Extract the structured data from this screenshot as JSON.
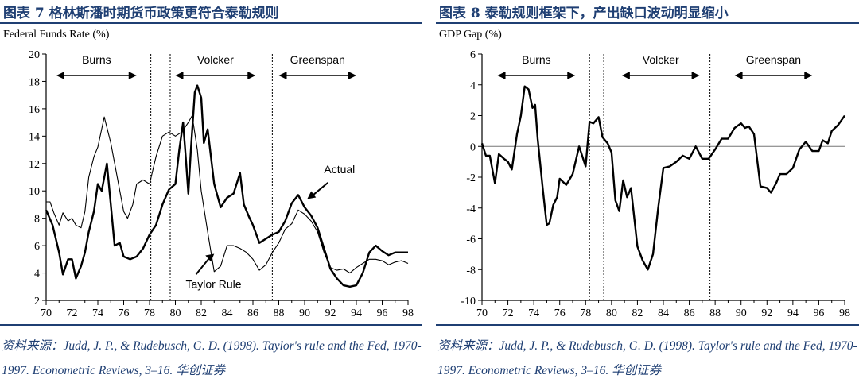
{
  "figures": [
    {
      "title": "图表 7 格林斯潘时期货币政策更符合泰勒规则",
      "ylabel": "Federal Funds Rate (%)",
      "source": "资料来源：Judd, J. P., & Rudebusch, G. D. (1998). Taylor's rule and the Fed, 1970-1997. Econometric Reviews, 3–16. 华创证券"
    },
    {
      "title": "图表 8 泰勒规则框架下，产出缺口波动明显缩小",
      "ylabel": "GDP Gap (%)",
      "source": "资料来源：Judd, J. P., & Rudebusch, G. D. (1998). Taylor's rule and the Fed, 1970-1997. Econometric Reviews, 3–16. 华创证券"
    }
  ],
  "chart_data": [
    {
      "type": "line",
      "title": "图表 7 格林斯潘时期货币政策更符合泰勒规则",
      "ylabel": "Federal Funds Rate (%)",
      "xlabel": "",
      "xlim": [
        70,
        98
      ],
      "ylim": [
        2,
        20
      ],
      "xticks": [
        "70",
        "72",
        "74",
        "76",
        "78",
        "80",
        "82",
        "84",
        "86",
        "88",
        "90",
        "92",
        "94",
        "96",
        "98"
      ],
      "yticks": [
        "2",
        "4",
        "6",
        "8",
        "10",
        "12",
        "14",
        "16",
        "18",
        "20"
      ],
      "grid": false,
      "eras": [
        {
          "label": "Burns",
          "start": 70.8,
          "end": 77.0,
          "divider": 78.1
        },
        {
          "label": "Volcker",
          "start": 80.0,
          "end": 86.2,
          "divider": 79.6
        },
        {
          "label": "Greenspan",
          "start": 88.0,
          "end": 94.0,
          "divider": 87.5
        }
      ],
      "annotations": [
        {
          "text": "Actual",
          "series": "Actual"
        },
        {
          "text": "Taylor Rule",
          "series": "Taylor Rule"
        }
      ],
      "series": [
        {
          "name": "Actual",
          "style": "thick",
          "points": [
            [
              70,
              8.6
            ],
            [
              70.5,
              7.5
            ],
            [
              71,
              5.5
            ],
            [
              71.3,
              3.9
            ],
            [
              71.7,
              5.0
            ],
            [
              72,
              5.0
            ],
            [
              72.3,
              3.6
            ],
            [
              72.7,
              4.5
            ],
            [
              73,
              5.5
            ],
            [
              73.3,
              7.0
            ],
            [
              73.7,
              8.5
            ],
            [
              74,
              10.5
            ],
            [
              74.3,
              10.0
            ],
            [
              74.7,
              12.0
            ],
            [
              75,
              9.0
            ],
            [
              75.3,
              6.0
            ],
            [
              75.7,
              6.2
            ],
            [
              76,
              5.2
            ],
            [
              76.5,
              5.0
            ],
            [
              77,
              5.2
            ],
            [
              77.5,
              5.8
            ],
            [
              78,
              6.8
            ],
            [
              78.5,
              7.5
            ],
            [
              79,
              9.0
            ],
            [
              79.5,
              10.1
            ],
            [
              80,
              10.5
            ],
            [
              80.3,
              13.0
            ],
            [
              80.6,
              15.0
            ],
            [
              80.8,
              12.5
            ],
            [
              81,
              9.8
            ],
            [
              81.2,
              13.0
            ],
            [
              81.5,
              17.2
            ],
            [
              81.7,
              17.7
            ],
            [
              82,
              16.8
            ],
            [
              82.2,
              13.5
            ],
            [
              82.5,
              14.5
            ],
            [
              83,
              10.5
            ],
            [
              83.5,
              8.8
            ],
            [
              84,
              9.5
            ],
            [
              84.5,
              9.8
            ],
            [
              85,
              11.3
            ],
            [
              85.3,
              9.0
            ],
            [
              85.7,
              8.1
            ],
            [
              86,
              7.5
            ],
            [
              86.5,
              6.2
            ],
            [
              87,
              6.5
            ],
            [
              87.5,
              6.8
            ],
            [
              88,
              7.0
            ],
            [
              88.5,
              7.8
            ],
            [
              89,
              9.1
            ],
            [
              89.5,
              9.7
            ],
            [
              90,
              8.8
            ],
            [
              90.5,
              8.2
            ],
            [
              91,
              7.3
            ],
            [
              91.5,
              5.8
            ],
            [
              92,
              4.3
            ],
            [
              92.5,
              3.6
            ],
            [
              93,
              3.1
            ],
            [
              93.5,
              3.0
            ],
            [
              94,
              3.1
            ],
            [
              94.5,
              4.0
            ],
            [
              95,
              5.5
            ],
            [
              95.5,
              6.0
            ],
            [
              96,
              5.6
            ],
            [
              96.5,
              5.3
            ],
            [
              97,
              5.5
            ],
            [
              97.5,
              5.5
            ],
            [
              98,
              5.5
            ]
          ]
        },
        {
          "name": "Taylor Rule",
          "style": "thin",
          "points": [
            [
              70,
              9.2
            ],
            [
              70.3,
              9.2
            ],
            [
              70.6,
              8.4
            ],
            [
              71,
              7.5
            ],
            [
              71.3,
              8.4
            ],
            [
              71.7,
              7.8
            ],
            [
              72,
              8.0
            ],
            [
              72.3,
              7.5
            ],
            [
              72.7,
              7.3
            ],
            [
              73,
              8.5
            ],
            [
              73.3,
              11.0
            ],
            [
              73.7,
              12.5
            ],
            [
              74,
              13.2
            ],
            [
              74.5,
              15.4
            ],
            [
              75,
              13.5
            ],
            [
              75.5,
              11.0
            ],
            [
              76,
              8.5
            ],
            [
              76.3,
              8.0
            ],
            [
              76.7,
              9.0
            ],
            [
              77,
              10.5
            ],
            [
              77.5,
              10.8
            ],
            [
              78,
              10.5
            ],
            [
              78.5,
              12.5
            ],
            [
              79,
              14.0
            ],
            [
              79.5,
              14.3
            ],
            [
              80,
              14.0
            ],
            [
              80.5,
              14.3
            ],
            [
              81,
              15.0
            ],
            [
              81.3,
              15.5
            ],
            [
              81.7,
              13.0
            ],
            [
              82,
              10.0
            ],
            [
              82.5,
              7.0
            ],
            [
              83,
              4.1
            ],
            [
              83.5,
              4.5
            ],
            [
              84,
              6.0
            ],
            [
              84.5,
              6.0
            ],
            [
              85,
              5.8
            ],
            [
              85.5,
              5.5
            ],
            [
              86,
              5.0
            ],
            [
              86.5,
              4.2
            ],
            [
              87,
              4.6
            ],
            [
              87.5,
              5.5
            ],
            [
              88,
              6.2
            ],
            [
              88.5,
              7.2
            ],
            [
              89,
              7.6
            ],
            [
              89.5,
              8.6
            ],
            [
              90,
              8.3
            ],
            [
              90.5,
              7.8
            ],
            [
              91,
              7.0
            ],
            [
              91.5,
              5.5
            ],
            [
              92,
              4.4
            ],
            [
              92.5,
              4.2
            ],
            [
              93,
              4.3
            ],
            [
              93.5,
              4.0
            ],
            [
              94,
              4.4
            ],
            [
              94.5,
              4.7
            ],
            [
              95,
              5.0
            ],
            [
              95.5,
              5.0
            ],
            [
              96,
              4.9
            ],
            [
              96.5,
              4.6
            ],
            [
              97,
              4.8
            ],
            [
              97.5,
              4.9
            ],
            [
              98,
              4.7
            ]
          ]
        }
      ]
    },
    {
      "type": "line",
      "title": "图表 8 泰勒规则框架下，产出缺口波动明显缩小",
      "ylabel": "GDP Gap (%)",
      "xlabel": "",
      "xlim": [
        70,
        98
      ],
      "ylim": [
        -10,
        6
      ],
      "xticks": [
        "70",
        "72",
        "74",
        "76",
        "78",
        "80",
        "82",
        "84",
        "86",
        "88",
        "90",
        "92",
        "94",
        "96",
        "98"
      ],
      "yticks": [
        "-10",
        "-8",
        "-6",
        "-4",
        "-2",
        "0",
        "2",
        "4",
        "6"
      ],
      "grid": false,
      "zero_line": true,
      "eras": [
        {
          "label": "Burns",
          "start": 71.2,
          "end": 77.2,
          "divider": 78.3
        },
        {
          "label": "Volcker",
          "start": 80.8,
          "end": 86.8,
          "divider": 79.4
        },
        {
          "label": "Greenspan",
          "start": 89.5,
          "end": 95.5,
          "divider": 87.6
        }
      ],
      "series": [
        {
          "name": "GDP Gap",
          "style": "thick",
          "points": [
            [
              70,
              0.2
            ],
            [
              70.3,
              -0.6
            ],
            [
              70.6,
              -0.6
            ],
            [
              71,
              -2.4
            ],
            [
              71.3,
              -0.5
            ],
            [
              71.7,
              -0.8
            ],
            [
              72,
              -1.0
            ],
            [
              72.3,
              -1.5
            ],
            [
              72.7,
              0.8
            ],
            [
              73,
              2.0
            ],
            [
              73.3,
              3.9
            ],
            [
              73.6,
              3.7
            ],
            [
              73.9,
              2.5
            ],
            [
              74.1,
              2.7
            ],
            [
              74.3,
              0.5
            ],
            [
              74.7,
              -2.8
            ],
            [
              75,
              -5.1
            ],
            [
              75.2,
              -5.0
            ],
            [
              75.5,
              -3.8
            ],
            [
              75.8,
              -3.3
            ],
            [
              76,
              -2.1
            ],
            [
              76.5,
              -2.5
            ],
            [
              77,
              -1.8
            ],
            [
              77.5,
              0.0
            ],
            [
              78,
              -1.3
            ],
            [
              78.3,
              1.6
            ],
            [
              78.6,
              1.5
            ],
            [
              79,
              1.9
            ],
            [
              79.3,
              0.6
            ],
            [
              79.7,
              0.2
            ],
            [
              80,
              -0.4
            ],
            [
              80.3,
              -3.5
            ],
            [
              80.6,
              -4.2
            ],
            [
              80.9,
              -2.2
            ],
            [
              81.2,
              -3.3
            ],
            [
              81.5,
              -2.7
            ],
            [
              82,
              -6.5
            ],
            [
              82.4,
              -7.4
            ],
            [
              82.8,
              -8.0
            ],
            [
              83.2,
              -7.0
            ],
            [
              83.6,
              -4.0
            ],
            [
              84,
              -1.4
            ],
            [
              84.5,
              -1.3
            ],
            [
              85,
              -1.0
            ],
            [
              85.5,
              -0.6
            ],
            [
              86,
              -0.8
            ],
            [
              86.5,
              0.0
            ],
            [
              87,
              -0.8
            ],
            [
              87.5,
              -0.8
            ],
            [
              88,
              -0.2
            ],
            [
              88.5,
              0.5
            ],
            [
              89,
              0.5
            ],
            [
              89.5,
              1.2
            ],
            [
              90,
              1.5
            ],
            [
              90.3,
              1.2
            ],
            [
              90.6,
              1.3
            ],
            [
              91,
              0.8
            ],
            [
              91.5,
              -2.6
            ],
            [
              92,
              -2.7
            ],
            [
              92.3,
              -3.0
            ],
            [
              92.7,
              -2.4
            ],
            [
              93,
              -1.8
            ],
            [
              93.5,
              -1.8
            ],
            [
              94,
              -1.4
            ],
            [
              94.5,
              -0.2
            ],
            [
              95,
              0.3
            ],
            [
              95.5,
              -0.3
            ],
            [
              96,
              -0.3
            ],
            [
              96.3,
              0.4
            ],
            [
              96.7,
              0.2
            ],
            [
              97,
              1.0
            ],
            [
              97.5,
              1.4
            ],
            [
              98,
              2.0
            ]
          ]
        }
      ]
    }
  ]
}
